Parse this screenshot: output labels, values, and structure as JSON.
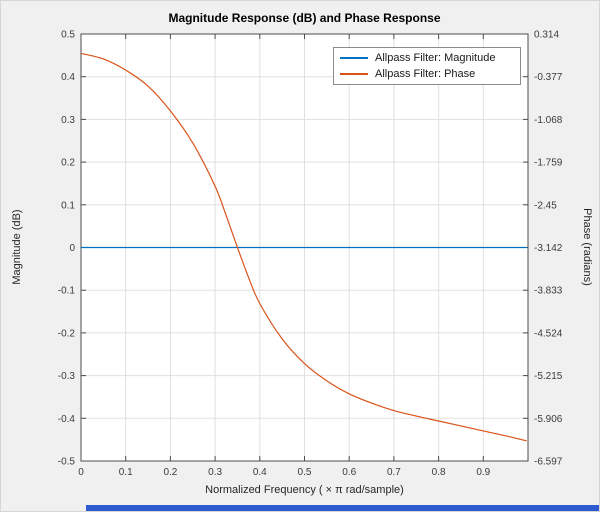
{
  "figure": {
    "background": "#f0f0f0"
  },
  "chart_data": {
    "type": "line",
    "title": "Magnitude Response (dB) and Phase Response",
    "xlabel": "Normalized  Frequency  ( × π  rad/sample)",
    "ylabel_left": "Magnitude (dB)",
    "ylabel_right": "Phase (radians)",
    "xlim": [
      0,
      1
    ],
    "ylim_left": [
      -0.5,
      0.5
    ],
    "ylim_right": [
      -6.597,
      0.314
    ],
    "grid": true,
    "legend_position": "northeast",
    "x_ticks": {
      "values": [
        0,
        0.1,
        0.2,
        0.3,
        0.4,
        0.5,
        0.6,
        0.7,
        0.8,
        0.9
      ],
      "labels": [
        "0",
        "0.1",
        "0.2",
        "0.3",
        "0.4",
        "0.5",
        "0.6",
        "0.7",
        "0.8",
        "0.9"
      ]
    },
    "y_ticks_left": {
      "values": [
        0.5,
        0.4,
        0.3,
        0.2,
        0.1,
        0,
        -0.1,
        -0.2,
        -0.3,
        -0.4,
        -0.5
      ],
      "labels": [
        "0.5",
        "0.4",
        "0.3",
        "0.2",
        "0.1",
        "0",
        "-0.1",
        "-0.2",
        "-0.3",
        "-0.4",
        "-0.5"
      ]
    },
    "y_ticks_right": {
      "labels": [
        "0.314",
        "-0.377",
        "-1.068",
        "-1.759",
        "-2.45",
        "-3.142",
        "-3.833",
        "-4.524",
        "-5.215",
        "-5.906",
        "-6.597"
      ]
    },
    "legend": [
      {
        "label": "Allpass Filter: Magnitude",
        "color": "#0072BD"
      },
      {
        "label": "Allpass Filter: Phase",
        "color": "#D95319"
      }
    ],
    "series": [
      {
        "name": "Allpass Filter: Magnitude",
        "axis": "left",
        "color": "#0072BD",
        "x": [
          0,
          0.9969
        ],
        "y": [
          0,
          0
        ]
      },
      {
        "name": "Allpass Filter: Phase",
        "axis": "right",
        "color": "#D95319",
        "x": [
          0,
          0.05,
          0.1,
          0.15,
          0.2,
          0.25,
          0.3,
          0.325,
          0.35,
          0.375,
          0.4,
          0.45,
          0.5,
          0.55,
          0.6,
          0.65,
          0.7,
          0.75,
          0.8,
          0.85,
          0.9,
          0.95,
          0.9969
        ],
        "y": [
          0,
          -0.09,
          -0.27,
          -0.53,
          -0.93,
          -1.45,
          -2.15,
          -2.63,
          -3.14,
          -3.63,
          -4.05,
          -4.62,
          -5.02,
          -5.3,
          -5.51,
          -5.66,
          -5.78,
          -5.87,
          -5.95,
          -6.03,
          -6.11,
          -6.19,
          -6.27
        ]
      }
    ],
    "colors": {
      "plot_background": "#ffffff",
      "grid": "#e0e0e0",
      "axis": "#4d4d4d",
      "tick_label": "#3b3b3b"
    }
  }
}
